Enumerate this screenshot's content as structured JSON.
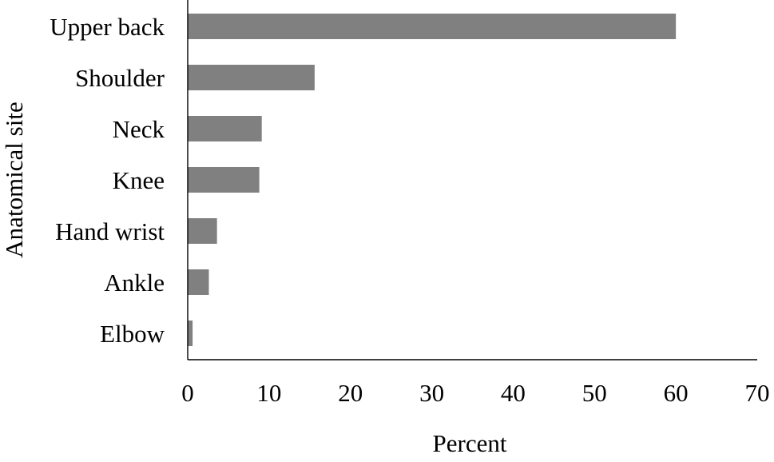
{
  "chart_data": {
    "type": "bar",
    "orientation": "horizontal",
    "categories": [
      "Upper back",
      "Shoulder",
      "Neck",
      "Knee",
      "Hand wrist",
      "Ankle",
      "Elbow"
    ],
    "values": [
      60,
      15.6,
      9.1,
      8.8,
      3.6,
      2.6,
      0.6
    ],
    "xlabel": "Percent",
    "ylabel": "Anatomical site",
    "xlim": [
      0,
      70
    ],
    "xticks": [
      0,
      10,
      20,
      30,
      40,
      50,
      60,
      70
    ],
    "grid": false,
    "legend": "none",
    "bar_color": "#808080"
  }
}
